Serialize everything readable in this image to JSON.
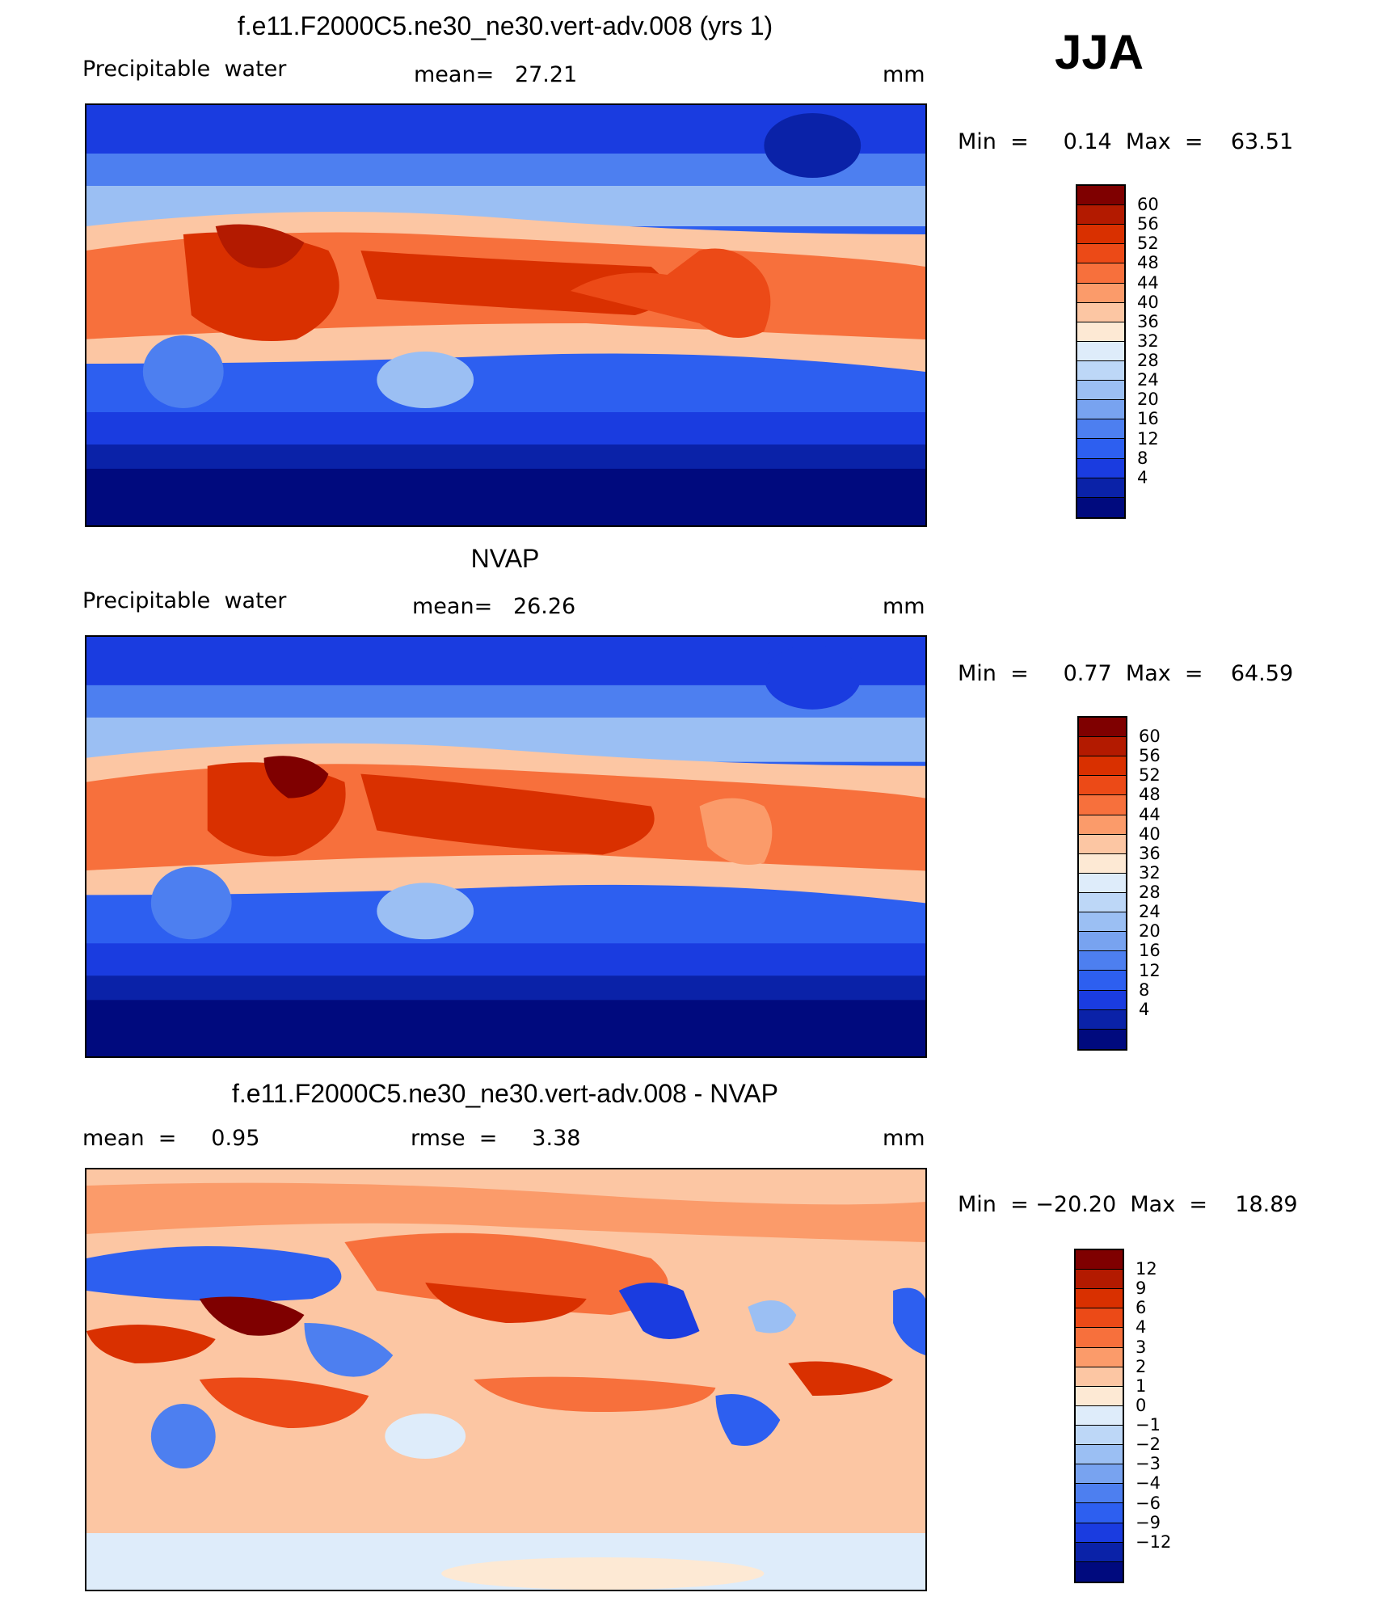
{
  "season": "JJA",
  "colorscales": {
    "pw": [
      "#7f0000",
      "#b31a00",
      "#d93000",
      "#ec4a17",
      "#f7703c",
      "#fb9b6a",
      "#fcc6a3",
      "#fde9d4",
      "#deecfa",
      "#bdd7f7",
      "#9bbff3",
      "#78a3f0",
      "#4d7ff0",
      "#2d5ff0",
      "#1a3ce0",
      "#0a22a8",
      "#000a7e"
    ],
    "diff": [
      "#7f0000",
      "#b31a00",
      "#d93000",
      "#ec4a17",
      "#f7703c",
      "#fb9b6a",
      "#fcc6a3",
      "#fde9d4",
      "#deecfa",
      "#bdd7f7",
      "#9bbff3",
      "#78a3f0",
      "#4d7ff0",
      "#2d5ff0",
      "#1a3ce0",
      "#0a22a8",
      "#000a7e"
    ]
  },
  "panels": [
    {
      "title": "f.e11.F2000C5.ne30_ne30.vert-adv.008 (yrs 1)",
      "left_label": "Precipitable  water",
      "mid_label": "mean=   27.21",
      "unit": "mm",
      "minmax": "Min  =     0.14  Max  =    63.51",
      "colorbar_labels": [
        "60",
        "56",
        "52",
        "48",
        "44",
        "40",
        "36",
        "32",
        "28",
        "24",
        "20",
        "16",
        "12",
        "8",
        "4"
      ]
    },
    {
      "title": "NVAP",
      "left_label": "Precipitable  water",
      "mid_label": "mean=   26.26",
      "unit": "mm",
      "minmax": "Min  =     0.77  Max  =    64.59",
      "colorbar_labels": [
        "60",
        "56",
        "52",
        "48",
        "44",
        "40",
        "36",
        "32",
        "28",
        "24",
        "20",
        "16",
        "12",
        "8",
        "4"
      ]
    },
    {
      "title": "f.e11.F2000C5.ne30_ne30.vert-adv.008 - NVAP",
      "left_label": "mean  =     0.95",
      "mid_label": "rmse  =     3.38",
      "unit": "mm",
      "minmax": "Min  = −20.20  Max  =    18.89",
      "colorbar_labels": [
        "12",
        "9",
        "6",
        "4",
        "3",
        "2",
        "1",
        "0",
        "−1",
        "−2",
        "−3",
        "−4",
        "−6",
        "−9",
        "−12"
      ]
    }
  ],
  "chart_data": [
    {
      "type": "heatmap",
      "title": "f.e11.F2000C5.ne30_ne30.vert-adv.008 (yrs 1)",
      "variable": "Precipitable water",
      "units": "mm",
      "mean": 27.21,
      "min": 0.14,
      "max": 63.51,
      "contour_levels": [
        4,
        8,
        12,
        16,
        20,
        24,
        28,
        32,
        36,
        40,
        44,
        48,
        52,
        56,
        60
      ]
    },
    {
      "type": "heatmap",
      "title": "NVAP",
      "variable": "Precipitable water",
      "units": "mm",
      "mean": 26.26,
      "min": 0.77,
      "max": 64.59,
      "contour_levels": [
        4,
        8,
        12,
        16,
        20,
        24,
        28,
        32,
        36,
        40,
        44,
        48,
        52,
        56,
        60
      ]
    },
    {
      "type": "heatmap",
      "title": "f.e11.F2000C5.ne30_ne30.vert-adv.008 - NVAP",
      "units": "mm",
      "mean": 0.95,
      "rmse": 3.38,
      "min": -20.2,
      "max": 18.89,
      "contour_levels": [
        -12,
        -9,
        -6,
        -4,
        -3,
        -2,
        -1,
        0,
        1,
        2,
        3,
        4,
        6,
        9,
        12
      ]
    }
  ]
}
